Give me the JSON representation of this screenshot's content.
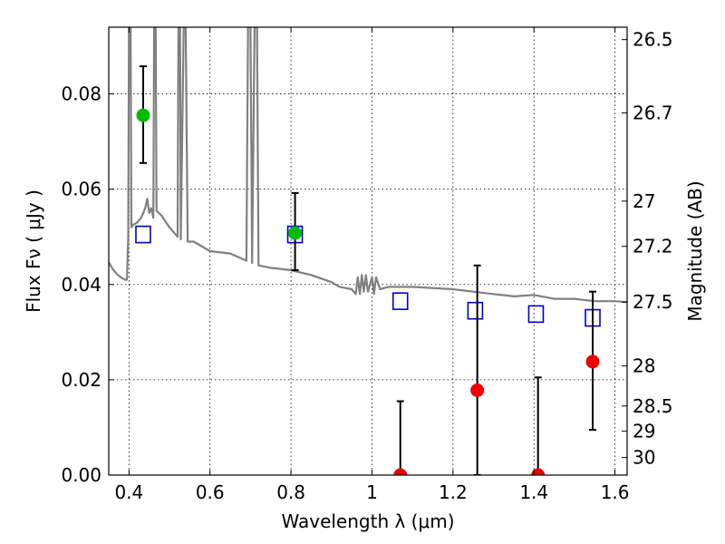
{
  "chart_data": {
    "type": "scatter",
    "title": "",
    "xlabel": "Wavelength  λ (μm)",
    "ylabel_left": "Flux  Fν  ( μJy )",
    "ylabel_right": "Magnitude (AB)",
    "xlim": [
      0.35,
      1.63
    ],
    "ylim": [
      0.0,
      0.094
    ],
    "grid": true,
    "x_ticks": [
      {
        "value": 0.4,
        "label": "0.4"
      },
      {
        "value": 0.6,
        "label": "0.6"
      },
      {
        "value": 0.8,
        "label": "0.8"
      },
      {
        "value": 1.0,
        "label": "1"
      },
      {
        "value": 1.2,
        "label": "1.2"
      },
      {
        "value": 1.4,
        "label": "1.4"
      },
      {
        "value": 1.6,
        "label": "1.6"
      }
    ],
    "y_ticks": [
      {
        "value": 0.0,
        "label": "0.00"
      },
      {
        "value": 0.02,
        "label": "0.02"
      },
      {
        "value": 0.04,
        "label": "0.04"
      },
      {
        "value": 0.06,
        "label": "0.06"
      },
      {
        "value": 0.08,
        "label": "0.08"
      }
    ],
    "right_ticks": [
      {
        "flux": 0.0914,
        "label": "26.5"
      },
      {
        "flux": 0.076,
        "label": "26.7"
      },
      {
        "flux": 0.0575,
        "label": "27"
      },
      {
        "flux": 0.048,
        "label": "27.2"
      },
      {
        "flux": 0.0363,
        "label": "27.5"
      },
      {
        "flux": 0.0229,
        "label": "28"
      },
      {
        "flux": 0.0145,
        "label": "28.5"
      },
      {
        "flux": 0.0092,
        "label": "29"
      },
      {
        "flux": 0.0037,
        "label": "30"
      }
    ],
    "series": [
      {
        "marker": "line",
        "color": "#808080",
        "points": [
          [
            0.35,
            0.0447
          ],
          [
            0.36,
            0.0432
          ],
          [
            0.37,
            0.0422
          ],
          [
            0.38,
            0.0415
          ],
          [
            0.39,
            0.041
          ],
          [
            0.395,
            0.041
          ],
          [
            0.398,
            0.05
          ],
          [
            0.4,
            0.094
          ],
          [
            0.404,
            0.094
          ],
          [
            0.406,
            0.052
          ],
          [
            0.41,
            0.0525
          ],
          [
            0.42,
            0.053
          ],
          [
            0.43,
            0.054
          ],
          [
            0.44,
            0.056
          ],
          [
            0.445,
            0.058
          ],
          [
            0.45,
            0.055
          ],
          [
            0.455,
            0.056
          ],
          [
            0.46,
            0.054
          ],
          [
            0.462,
            0.094
          ],
          [
            0.466,
            0.094
          ],
          [
            0.468,
            0.0555
          ],
          [
            0.48,
            0.0545
          ],
          [
            0.5,
            0.052
          ],
          [
            0.52,
            0.05
          ],
          [
            0.522,
            0.094
          ],
          [
            0.526,
            0.094
          ],
          [
            0.528,
            0.0495
          ],
          [
            0.535,
            0.094
          ],
          [
            0.54,
            0.094
          ],
          [
            0.545,
            0.049
          ],
          [
            0.56,
            0.049
          ],
          [
            0.6,
            0.047
          ],
          [
            0.65,
            0.0465
          ],
          [
            0.69,
            0.045
          ],
          [
            0.694,
            0.094
          ],
          [
            0.7,
            0.094
          ],
          [
            0.704,
            0.0445
          ],
          [
            0.71,
            0.094
          ],
          [
            0.716,
            0.094
          ],
          [
            0.72,
            0.044
          ],
          [
            0.75,
            0.0435
          ],
          [
            0.8,
            0.043
          ],
          [
            0.85,
            0.042
          ],
          [
            0.9,
            0.0405
          ],
          [
            0.92,
            0.0395
          ],
          [
            0.95,
            0.039
          ],
          [
            0.96,
            0.038
          ],
          [
            0.965,
            0.0415
          ],
          [
            0.97,
            0.038
          ],
          [
            0.975,
            0.042
          ],
          [
            0.98,
            0.0385
          ],
          [
            0.985,
            0.042
          ],
          [
            0.99,
            0.0385
          ],
          [
            1.0,
            0.0415
          ],
          [
            1.005,
            0.038
          ],
          [
            1.01,
            0.0415
          ],
          [
            1.02,
            0.039
          ],
          [
            1.04,
            0.0395
          ],
          [
            1.1,
            0.0395
          ],
          [
            1.2,
            0.039
          ],
          [
            1.25,
            0.0385
          ],
          [
            1.3,
            0.038
          ],
          [
            1.35,
            0.0375
          ],
          [
            1.4,
            0.0378
          ],
          [
            1.45,
            0.037
          ],
          [
            1.5,
            0.037
          ],
          [
            1.55,
            0.0365
          ],
          [
            1.6,
            0.0365
          ],
          [
            1.63,
            0.0363
          ]
        ]
      },
      {
        "marker": "open-square",
        "color": "#0000cc",
        "points": [
          [
            0.435,
            0.0505
          ],
          [
            0.81,
            0.0505
          ],
          [
            1.07,
            0.0365
          ],
          [
            1.255,
            0.0345
          ],
          [
            1.405,
            0.0338
          ],
          [
            1.545,
            0.033
          ]
        ]
      },
      {
        "marker": "filled-circle",
        "color": "#00bb00",
        "points": [
          {
            "x": 0.435,
            "y": 0.0755,
            "err_low": 0.0655,
            "err_high": 0.0858
          },
          {
            "x": 0.81,
            "y": 0.0508,
            "err_low": 0.043,
            "err_high": 0.0592
          }
        ]
      },
      {
        "marker": "filled-circle",
        "color": "#ee0000",
        "points": [
          {
            "x": 1.07,
            "y": 0.0,
            "err_low": 0.0,
            "err_high": 0.0155
          },
          {
            "x": 1.26,
            "y": 0.0178,
            "err_low": 0.0,
            "err_high": 0.044
          },
          {
            "x": 1.41,
            "y": 0.0,
            "err_low": 0.0,
            "err_high": 0.0205
          },
          {
            "x": 1.545,
            "y": 0.0238,
            "err_low": 0.0095,
            "err_high": 0.0385
          }
        ]
      }
    ]
  }
}
